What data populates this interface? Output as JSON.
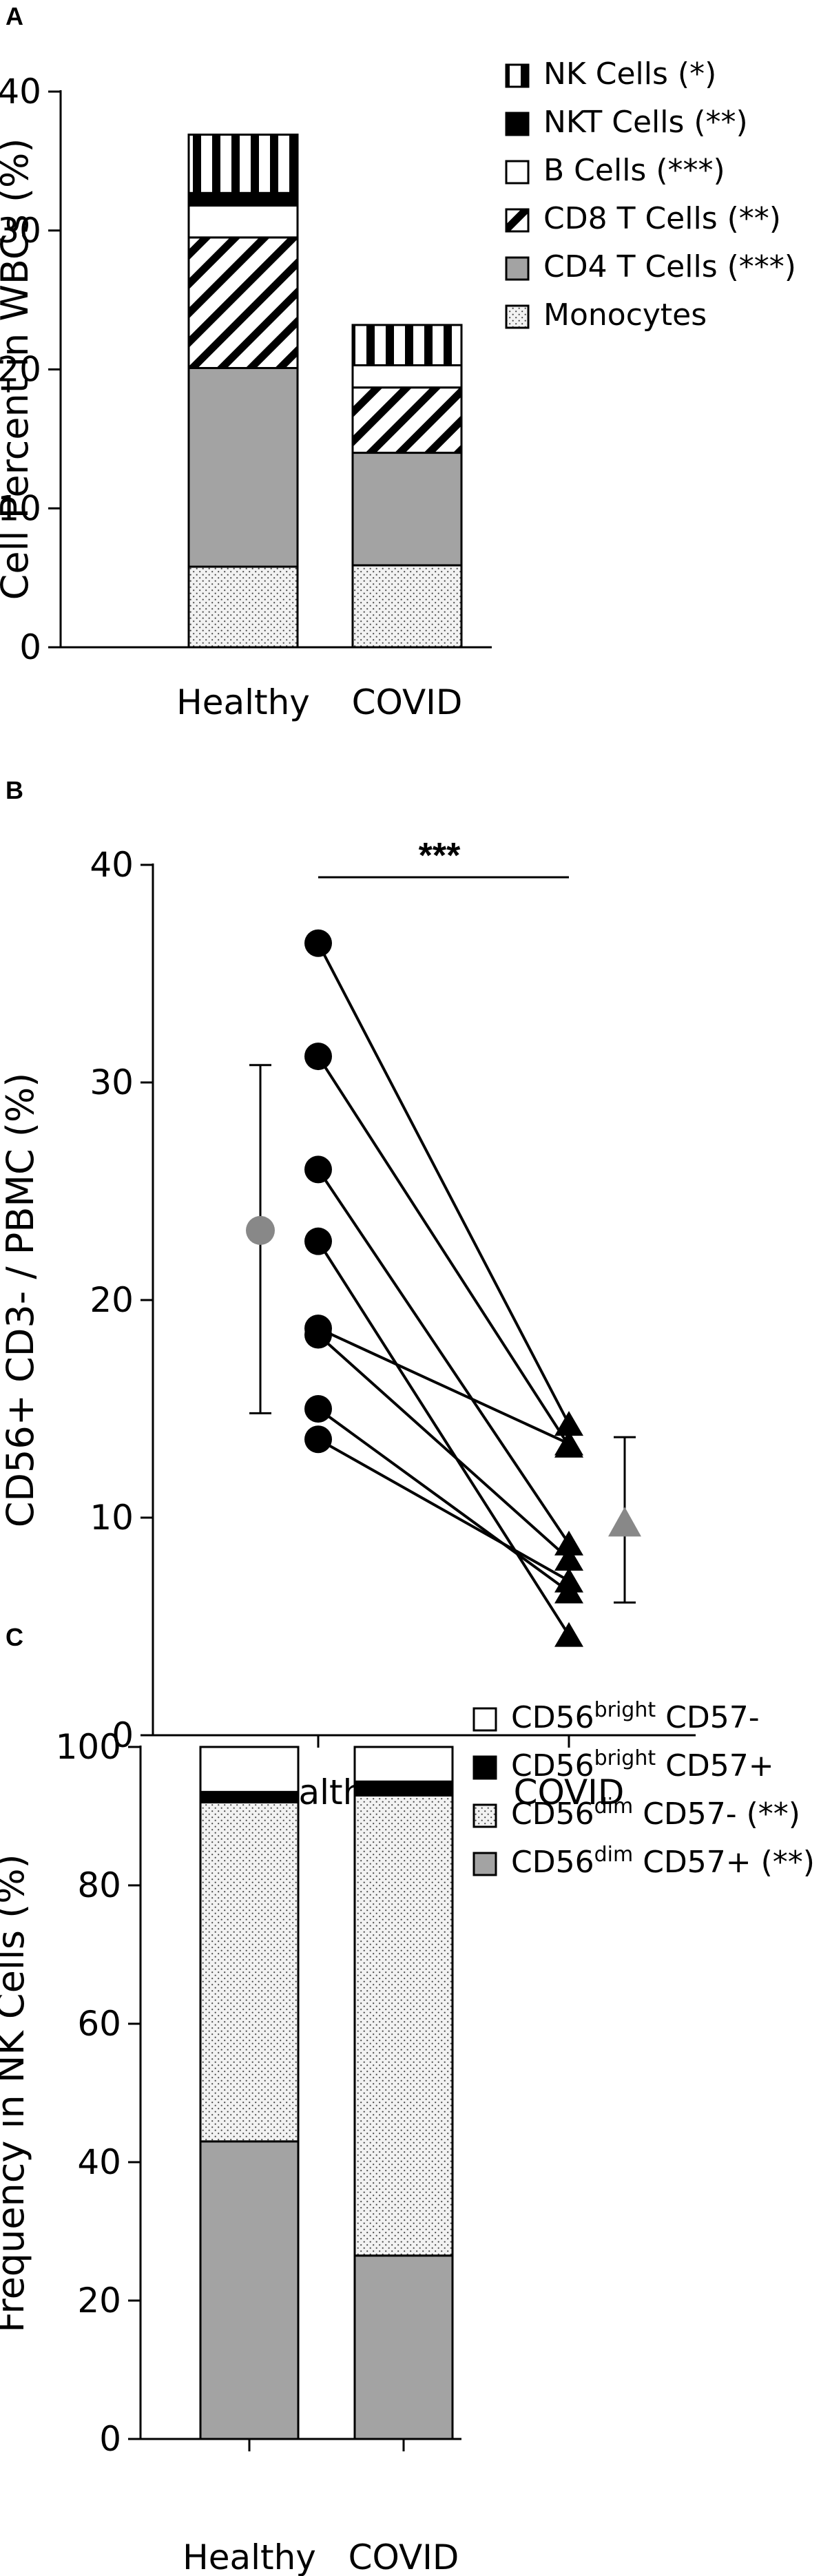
{
  "chart_data": [
    {
      "panel": "A",
      "type": "bar",
      "stacked": true,
      "ylabel": "Cell Percent  in WBCs (%)",
      "ylim": [
        0,
        40
      ],
      "yticks": [
        "0",
        "10",
        "20",
        "30",
        "40"
      ],
      "categories": [
        "Healthy",
        "COVID"
      ],
      "series": [
        {
          "name": "Monocytes",
          "values": [
            5.8,
            5.9
          ],
          "pattern": "dots"
        },
        {
          "name": "CD4 T Cells (***)",
          "values": [
            14.3,
            8.1
          ],
          "pattern": "gray"
        },
        {
          "name": "CD8 T Cells (**)",
          "values": [
            9.4,
            4.7
          ],
          "pattern": "diagonal"
        },
        {
          "name": "B Cells (***)",
          "values": [
            2.3,
            1.6
          ],
          "pattern": "white"
        },
        {
          "name": "NKT Cells (**)",
          "values": [
            0.9,
            0.0
          ],
          "pattern": "black"
        },
        {
          "name": "NK Cells (*)",
          "values": [
            4.2,
            2.9
          ],
          "pattern": "vertical"
        }
      ],
      "legend_order": [
        "NK Cells (*)",
        "NKT Cells (**)",
        "B Cells (***)",
        "CD8 T Cells (**)",
        "CD4 T Cells (***)",
        "Monocytes"
      ],
      "legend_position": "top-right"
    },
    {
      "panel": "B",
      "type": "scatter",
      "paired": true,
      "ylabel": "CD56+ CD3- / PBMC (%)",
      "ylim": [
        0,
        40
      ],
      "yticks": [
        "0",
        "10",
        "20",
        "30",
        "40"
      ],
      "categories": [
        "Healthy",
        "COVID"
      ],
      "pairs": [
        [
          36.4,
          14.3
        ],
        [
          31.2,
          13.3
        ],
        [
          26.0,
          8.8
        ],
        [
          22.7,
          4.6
        ],
        [
          18.7,
          13.4
        ],
        [
          18.4,
          8.1
        ],
        [
          15.0,
          6.6
        ],
        [
          13.6,
          7.1
        ]
      ],
      "summary": [
        {
          "category": "Healthy",
          "mean": 23.2,
          "lower": 14.8,
          "upper": 30.8,
          "color": "#888888",
          "marker": "circle"
        },
        {
          "category": "COVID",
          "mean": 9.8,
          "lower": 6.1,
          "upper": 13.7,
          "color": "#888888",
          "marker": "triangle"
        }
      ],
      "significance": "***"
    },
    {
      "panel": "C",
      "type": "bar",
      "stacked": true,
      "ylabel": "Frequency in NK Cells (%)",
      "ylim": [
        0,
        100
      ],
      "yticks": [
        "0",
        "20",
        "40",
        "60",
        "80",
        "100"
      ],
      "categories": [
        "Healthy",
        "COVID"
      ],
      "series": [
        {
          "name": "CD56dim CD57+ (**)",
          "base": "CD56",
          "sup": "dim",
          "suffix": " CD57+ (**)",
          "values": [
            43,
            26.5
          ],
          "pattern": "gray"
        },
        {
          "name": "CD56dim CD57- (**)",
          "base": "CD56",
          "sup": "dim",
          "suffix": " CD57- (**)",
          "values": [
            49,
            66.5
          ],
          "pattern": "dots"
        },
        {
          "name": "CD56bright CD57+",
          "base": "CD56",
          "sup": "bright",
          "suffix": " CD57+",
          "values": [
            1.5,
            2.0
          ],
          "pattern": "black"
        },
        {
          "name": "CD56bright CD57-",
          "base": "CD56",
          "sup": "bright",
          "suffix": " CD57-",
          "values": [
            6.5,
            5.0
          ],
          "pattern": "white"
        }
      ],
      "legend_order": [
        "CD56bright CD57-",
        "CD56bright CD57+",
        "CD56dim CD57- (**)",
        "CD56dim CD57+ (**)"
      ],
      "legend_position": "top-right"
    }
  ]
}
